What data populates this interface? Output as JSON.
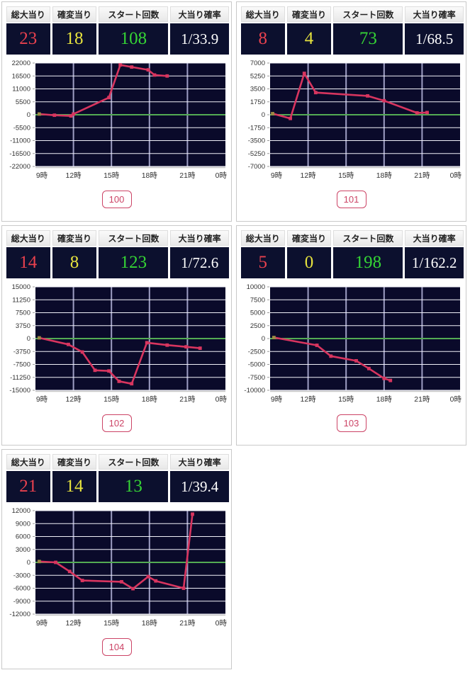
{
  "table_headers": [
    "総大当り",
    "確変当り",
    "スタート回数",
    "大当り確率"
  ],
  "colors": {
    "value_red": "#e8414e",
    "value_yellow": "#e6e23e",
    "value_green": "#35d435",
    "value_white": "#ffffff",
    "stat_cell_bg": "#0c102e",
    "plot_bg": "#0a0a2a",
    "line": "#d8355f",
    "start_marker": "#9c8a45",
    "zero_line": "#53ab53",
    "grid_horizontal": "#f0f0f8",
    "grid_vertical": "#9e9ec4",
    "axis_text": "#333333",
    "badge_pink": "#cc4466"
  },
  "panels": [
    {
      "machine_no": "100",
      "stats": {
        "total_jackpots": "23",
        "kakuhen_jackpots": "18",
        "start_count": "108",
        "jackpot_rate": "1/33.9"
      }
    },
    {
      "machine_no": "101",
      "stats": {
        "total_jackpots": "8",
        "kakuhen_jackpots": "4",
        "start_count": "73",
        "jackpot_rate": "1/68.5"
      }
    },
    {
      "machine_no": "102",
      "stats": {
        "total_jackpots": "14",
        "kakuhen_jackpots": "8",
        "start_count": "123",
        "jackpot_rate": "1/72.6"
      }
    },
    {
      "machine_no": "103",
      "stats": {
        "total_jackpots": "5",
        "kakuhen_jackpots": "0",
        "start_count": "198",
        "jackpot_rate": "1/162.2"
      }
    },
    {
      "machine_no": "104",
      "stats": {
        "total_jackpots": "21",
        "kakuhen_jackpots": "14",
        "start_count": "13",
        "jackpot_rate": "1/39.4"
      }
    }
  ],
  "chart_data": [
    {
      "type": "line",
      "machine": "100",
      "title": "",
      "x": [
        9.3,
        10.5,
        11.8,
        12.0,
        14.8,
        15.7,
        16.6,
        17.9,
        18.4,
        19.4
      ],
      "y": [
        300,
        -200,
        -500,
        300,
        7300,
        21200,
        20300,
        19100,
        16900,
        16500
      ],
      "ylim": [
        -22000,
        22000
      ],
      "y_ticks": [
        22000,
        16500,
        11000,
        5500,
        0,
        -5500,
        -11000,
        -16500,
        -22000
      ],
      "x_tick_hours": [
        9,
        12,
        15,
        18,
        21,
        24
      ],
      "x_tick_labels": [
        "9時",
        "12時",
        "15時",
        "18時",
        "21時",
        "0時"
      ],
      "grid": true,
      "legend": "none"
    },
    {
      "type": "line",
      "machine": "101",
      "title": "",
      "x": [
        9.2,
        10.6,
        11.7,
        12.6,
        16.7,
        18.0,
        20.6,
        21.4
      ],
      "y": [
        150,
        -500,
        5600,
        3000,
        2550,
        1900,
        250,
        300
      ],
      "ylim": [
        -7000,
        7000
      ],
      "y_ticks": [
        7000,
        5250,
        3500,
        1750,
        0,
        -1750,
        -3500,
        -5250,
        -7000
      ],
      "x_tick_hours": [
        9,
        12,
        15,
        18,
        21,
        24
      ],
      "x_tick_labels": [
        "9時",
        "12時",
        "15時",
        "18時",
        "21時",
        "0時"
      ],
      "grid": true,
      "legend": "none"
    },
    {
      "type": "line",
      "machine": "102",
      "title": "",
      "x": [
        9.3,
        11.6,
        12.7,
        13.7,
        14.8,
        15.6,
        16.6,
        17.8,
        19.4,
        20.9,
        22.0
      ],
      "y": [
        200,
        -1700,
        -3900,
        -9200,
        -9400,
        -12400,
        -13100,
        -1200,
        -1900,
        -2400,
        -2800
      ],
      "ylim": [
        -15000,
        15000
      ],
      "y_ticks": [
        15000,
        11250,
        7500,
        3750,
        0,
        -3750,
        -7500,
        -11250,
        -15000
      ],
      "x_tick_hours": [
        9,
        12,
        15,
        18,
        21,
        24
      ],
      "x_tick_labels": [
        "9時",
        "12時",
        "15時",
        "18時",
        "21時",
        "0時"
      ],
      "grid": true,
      "legend": "none"
    },
    {
      "type": "line",
      "machine": "103",
      "title": "",
      "x": [
        9.3,
        12.7,
        13.8,
        15.8,
        16.8,
        18.0,
        18.5
      ],
      "y": [
        200,
        -1300,
        -3400,
        -4300,
        -5800,
        -7700,
        -8100
      ],
      "ylim": [
        -10000,
        10000
      ],
      "y_ticks": [
        10000,
        7500,
        5000,
        2500,
        0,
        -2500,
        -5000,
        -7500,
        -10000
      ],
      "x_tick_hours": [
        9,
        12,
        15,
        18,
        21,
        24
      ],
      "x_tick_labels": [
        "9時",
        "12時",
        "15時",
        "18時",
        "21時",
        "0時"
      ],
      "grid": true,
      "legend": "none"
    },
    {
      "type": "line",
      "machine": "104",
      "title": "",
      "x": [
        9.3,
        10.6,
        11.7,
        12.7,
        15.8,
        16.7,
        17.9,
        18.5,
        20.7,
        21.4
      ],
      "y": [
        200,
        0,
        -2100,
        -4200,
        -4500,
        -6100,
        -3300,
        -4300,
        -6000,
        11200
      ],
      "ylim": [
        -12000,
        12000
      ],
      "y_ticks": [
        12000,
        9000,
        6000,
        3000,
        0,
        -3000,
        -6000,
        -9000,
        -12000
      ],
      "x_tick_hours": [
        9,
        12,
        15,
        18,
        21,
        24
      ],
      "x_tick_labels": [
        "9時",
        "12時",
        "15時",
        "18時",
        "21時",
        "0時"
      ],
      "grid": true,
      "legend": "none"
    }
  ]
}
